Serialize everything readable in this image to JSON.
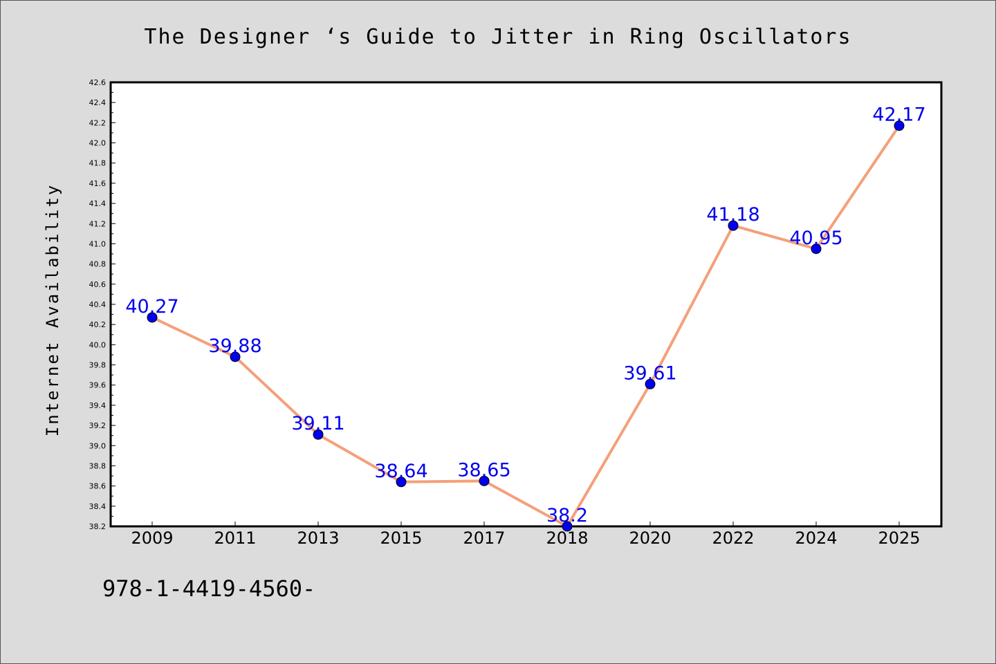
{
  "chart_data": {
    "type": "line",
    "title": "The Designer ‘s Guide to Jitter in Ring Oscillators",
    "xlabel": "",
    "ylabel": "Internet Availability",
    "categories": [
      "2009",
      "2011",
      "2013",
      "2015",
      "2017",
      "2018",
      "2020",
      "2022",
      "2024",
      "2025"
    ],
    "series": [
      {
        "values": [
          40.27,
          39.88,
          39.11,
          38.64,
          38.65,
          38.2,
          39.61,
          41.18,
          40.95,
          42.17
        ],
        "labels": [
          "40.27",
          "39.88",
          "39.11",
          "38.64",
          "38.65",
          "38.2",
          "39.61",
          "41.18",
          "40.95",
          "42.17"
        ]
      }
    ],
    "ylim": [
      38.2,
      42.6
    ],
    "yticks": [
      "38.2",
      "38.4",
      "38.6",
      "38.8",
      "39.0",
      "39.2",
      "39.4",
      "39.6",
      "39.8",
      "40.0",
      "40.2",
      "40.4",
      "40.6",
      "40.8",
      "41.0",
      "41.2",
      "41.4",
      "41.6",
      "41.8",
      "42.0",
      "42.2",
      "42.4",
      "42.6"
    ],
    "grid": false,
    "colors": {
      "line": "#f4a07a",
      "marker": "#0000ee",
      "label": "#0000ee",
      "background": "#dcdcdc",
      "plot_background": "#ffffff"
    }
  },
  "footer": {
    "code": "978-1-4419-4560-"
  }
}
